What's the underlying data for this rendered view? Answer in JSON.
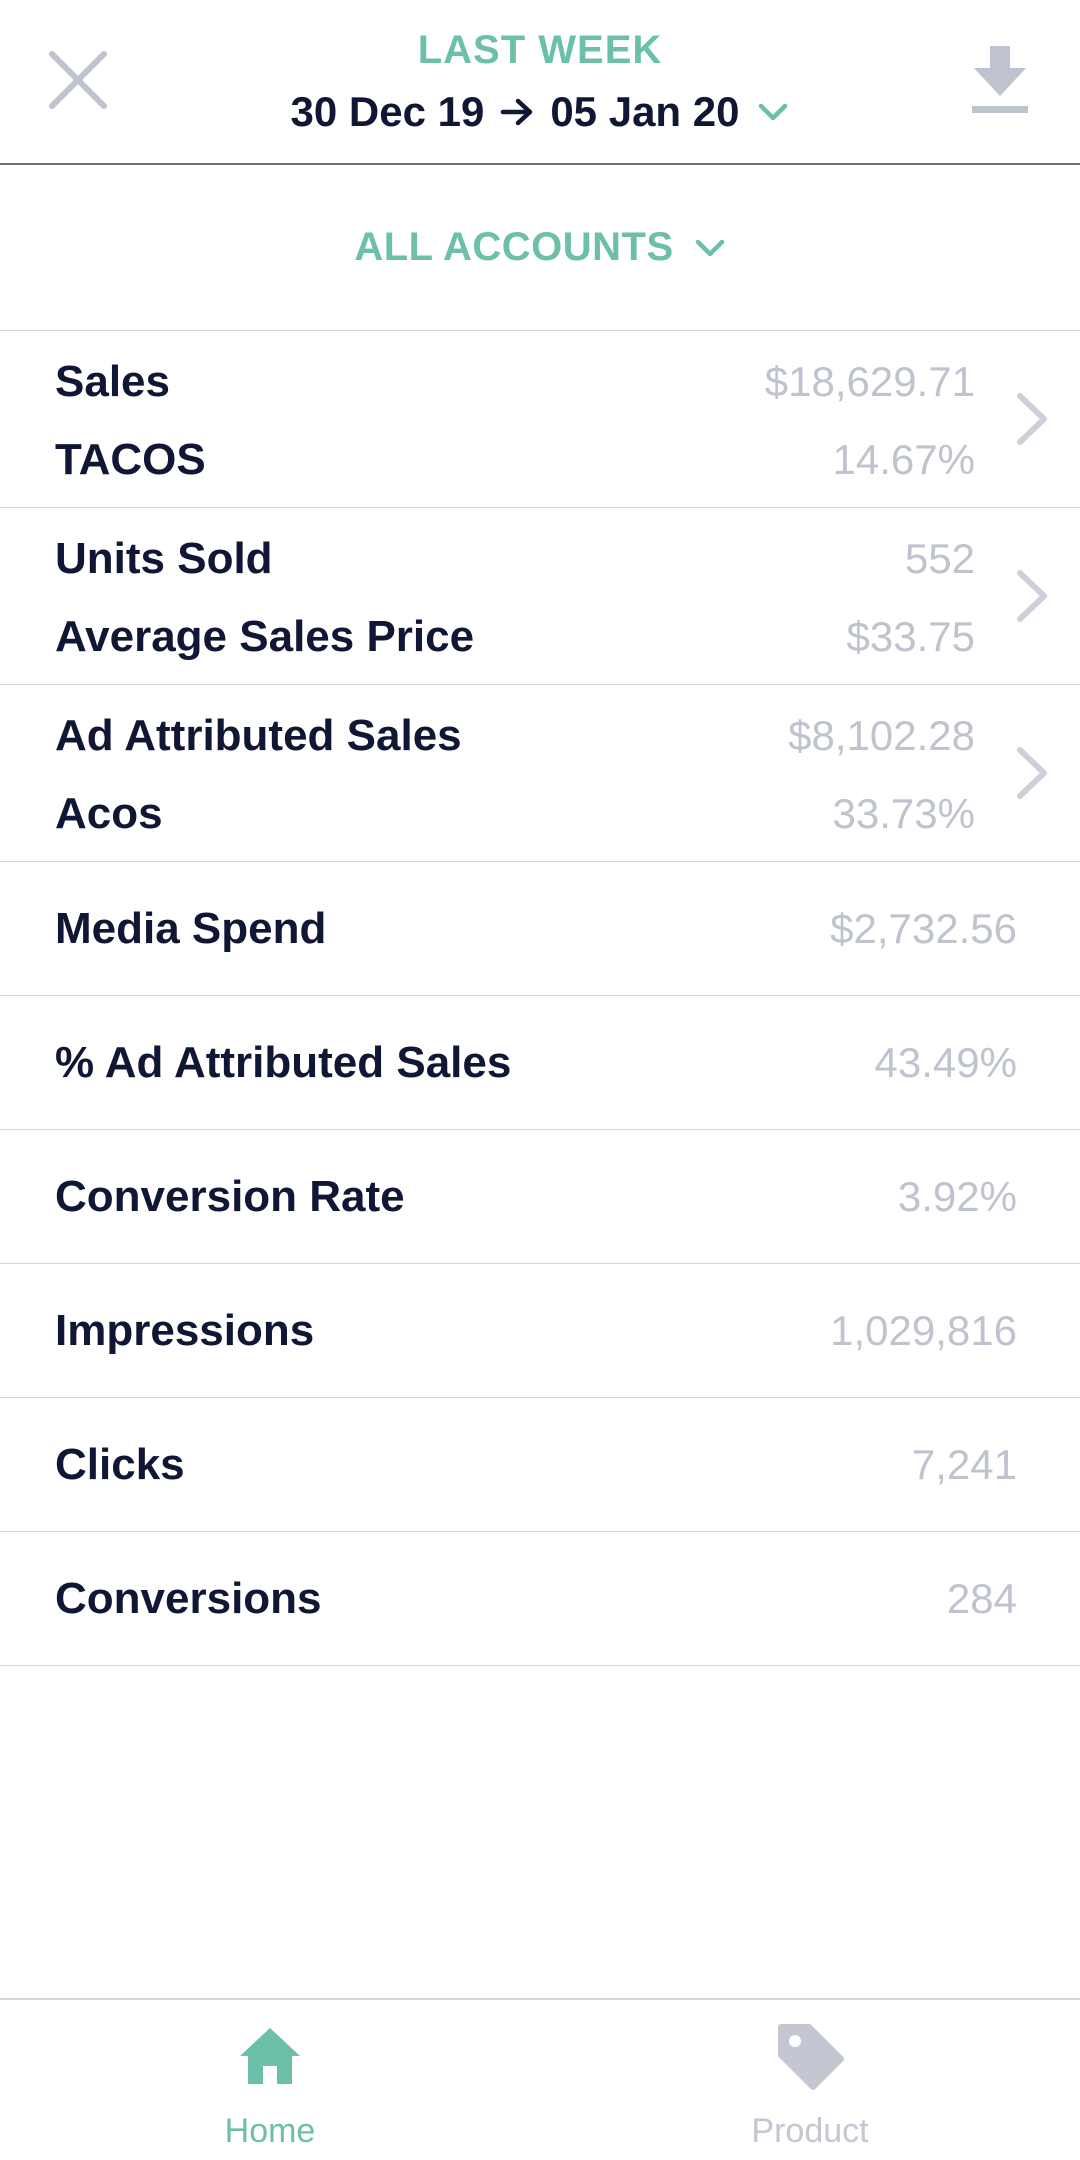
{
  "header": {
    "period_label": "LAST WEEK",
    "date_start": "30 Dec 19",
    "date_end": "05 Jan 20"
  },
  "accounts": {
    "label": "ALL ACCOUNTS"
  },
  "groups": [
    {
      "row1_label": "Sales",
      "row1_value": "$18,629.71",
      "row2_label": "TACOS",
      "row2_value": "14.67%"
    },
    {
      "row1_label": "Units Sold",
      "row1_value": "552",
      "row2_label": "Average Sales Price",
      "row2_value": "$33.75"
    },
    {
      "row1_label": "Ad Attributed Sales",
      "row1_value": "$8,102.28",
      "row2_label": "Acos",
      "row2_value": "33.73%"
    }
  ],
  "metrics": [
    {
      "label": "Media Spend",
      "value": "$2,732.56"
    },
    {
      "label": "% Ad Attributed Sales",
      "value": "43.49%"
    },
    {
      "label": "Conversion Rate",
      "value": "3.92%"
    },
    {
      "label": "Impressions",
      "value": "1,029,816"
    },
    {
      "label": "Clicks",
      "value": "7,241"
    },
    {
      "label": "Conversions",
      "value": "284"
    }
  ],
  "tabs": {
    "home_label": "Home",
    "product_label": "Product"
  },
  "colors": {
    "accent": "#6cbfa9",
    "text_dark": "#0f1734",
    "value_grey": "#bfc3cf",
    "icon_grey": "#bfc3cf"
  },
  "icons": {
    "close": "close-icon",
    "download": "download-icon",
    "arrow": "arrow-right-icon",
    "dropdown": "chevron-down-icon",
    "row_chevron": "chevron-right-icon",
    "home": "home-icon",
    "product": "tag-icon"
  }
}
